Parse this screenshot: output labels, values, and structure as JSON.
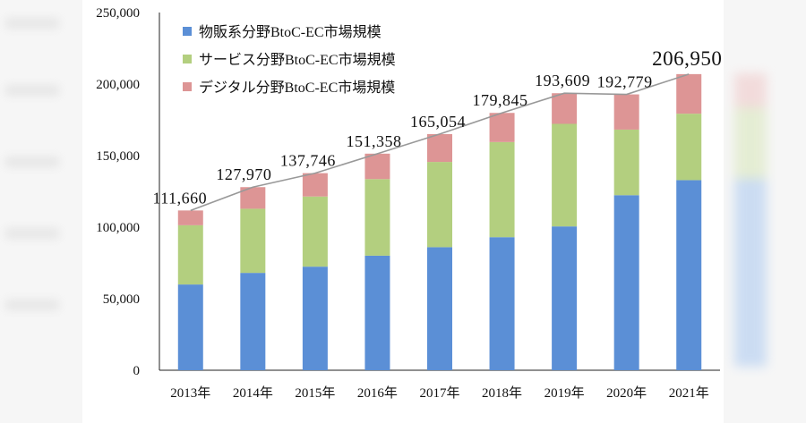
{
  "colors": {
    "physical": "#5b8fd6",
    "service": "#b3cf7f",
    "digital": "#dd9595",
    "axis": "#222222",
    "trend": "#999999"
  },
  "chart_data": {
    "type": "bar",
    "stacked": true,
    "categories": [
      "2013年",
      "2014年",
      "2015年",
      "2016年",
      "2017年",
      "2018年",
      "2019年",
      "2020年",
      "2021年"
    ],
    "series": [
      {
        "name": "物販系分野BtoC-EC市場規模",
        "values": [
          59931,
          68043,
          72398,
          80043,
          86008,
          92992,
          100515,
          122333,
          132865
        ]
      },
      {
        "name": "サービス分野BtoC-EC市場規模",
        "values": [
          41391,
          44816,
          49014,
          53532,
          59568,
          66471,
          71672,
          45832,
          46424
        ]
      },
      {
        "name": "デジタル分野BtoC-EC市場規模",
        "values": [
          10338,
          15111,
          16334,
          17783,
          19478,
          20382,
          21422,
          24614,
          27661
        ]
      }
    ],
    "totals": [
      111660,
      127970,
      137746,
      151358,
      165054,
      179845,
      193609,
      192779,
      206950
    ],
    "total_labels": [
      "111,660",
      "127,970",
      "137,746",
      "151,358",
      "165,054",
      "179,845",
      "193,609",
      "192,779",
      "206,950"
    ],
    "yticks": [
      "0",
      "50,000",
      "100,000",
      "150,000",
      "200,000",
      "250,000"
    ],
    "ylim": [
      0,
      250000
    ],
    "legend_position": "top-left",
    "grid": false
  }
}
